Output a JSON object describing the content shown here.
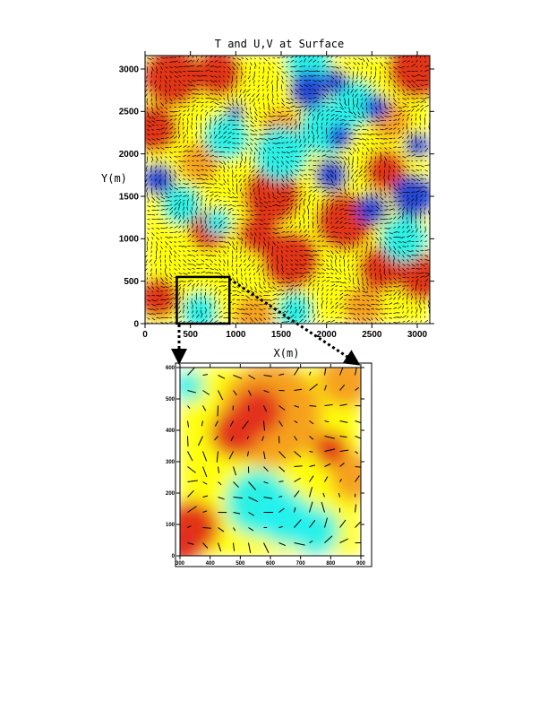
{
  "chart_data": [
    {
      "type": "heatmap",
      "title": "T and U,V at Surface",
      "xlabel": "X(m)",
      "ylabel": "Y(m)",
      "xlim": [
        0,
        3150
      ],
      "ylim": [
        0,
        3150
      ],
      "xticks": [
        0,
        500,
        1000,
        1500,
        2000,
        2500,
        3000
      ],
      "yticks": [
        0,
        500,
        1000,
        1500,
        2000,
        2500,
        3000
      ],
      "colormap": {
        "hot": "#e02a1a",
        "warm": "#f39020",
        "mid": "#ffff10",
        "cool": "#20f0f0",
        "cold": "#1a40e0"
      },
      "overlay": "wind vectors (U,V)",
      "zoom_box": {
        "x": [
          350,
          930
        ],
        "y": [
          0,
          550
        ]
      },
      "features": [
        {
          "x": 300,
          "y": 2900,
          "r": 320,
          "level": "hot"
        },
        {
          "x": 800,
          "y": 2950,
          "r": 260,
          "level": "hot"
        },
        {
          "x": 100,
          "y": 2300,
          "r": 260,
          "level": "hot"
        },
        {
          "x": 1400,
          "y": 1500,
          "r": 320,
          "level": "hot"
        },
        {
          "x": 1600,
          "y": 750,
          "r": 320,
          "level": "hot"
        },
        {
          "x": 1250,
          "y": 1050,
          "r": 220,
          "level": "hot"
        },
        {
          "x": 2200,
          "y": 1200,
          "r": 320,
          "level": "hot"
        },
        {
          "x": 2600,
          "y": 650,
          "r": 250,
          "level": "hot"
        },
        {
          "x": 3000,
          "y": 3000,
          "r": 320,
          "level": "hot"
        },
        {
          "x": 2700,
          "y": 2400,
          "r": 220,
          "level": "warm"
        },
        {
          "x": 2650,
          "y": 1800,
          "r": 230,
          "level": "hot"
        },
        {
          "x": 150,
          "y": 300,
          "r": 220,
          "level": "hot"
        },
        {
          "x": 1500,
          "y": 2300,
          "r": 220,
          "level": "warm"
        },
        {
          "x": 3050,
          "y": 550,
          "r": 260,
          "level": "hot"
        },
        {
          "x": 1200,
          "y": 100,
          "r": 220,
          "level": "warm"
        },
        {
          "x": 2400,
          "y": 200,
          "r": 220,
          "level": "warm"
        },
        {
          "x": 700,
          "y": 1100,
          "r": 220,
          "level": "hot"
        },
        {
          "x": 600,
          "y": 1900,
          "r": 220,
          "level": "warm"
        },
        {
          "x": 1500,
          "y": 2000,
          "r": 300,
          "level": "cool"
        },
        {
          "x": 400,
          "y": 1400,
          "r": 220,
          "level": "cool"
        },
        {
          "x": 2000,
          "y": 2300,
          "r": 300,
          "level": "cool"
        },
        {
          "x": 600,
          "y": 150,
          "r": 200,
          "level": "cool"
        },
        {
          "x": 1650,
          "y": 150,
          "r": 200,
          "level": "cool"
        },
        {
          "x": 2300,
          "y": 2600,
          "r": 260,
          "level": "cool"
        },
        {
          "x": 800,
          "y": 1200,
          "r": 150,
          "level": "cool"
        },
        {
          "x": 2850,
          "y": 1000,
          "r": 260,
          "level": "cool"
        },
        {
          "x": 900,
          "y": 2200,
          "r": 250,
          "level": "cool"
        },
        {
          "x": 1800,
          "y": 3050,
          "r": 250,
          "level": "cool"
        },
        {
          "x": 1800,
          "y": 2750,
          "r": 230,
          "level": "cold"
        },
        {
          "x": 2100,
          "y": 2850,
          "r": 150,
          "level": "cold"
        },
        {
          "x": 2550,
          "y": 2550,
          "r": 150,
          "level": "cold"
        },
        {
          "x": 150,
          "y": 1700,
          "r": 190,
          "level": "cold"
        },
        {
          "x": 1000,
          "y": 2500,
          "r": 100,
          "level": "cold"
        },
        {
          "x": 2950,
          "y": 1500,
          "r": 260,
          "level": "cold"
        },
        {
          "x": 2500,
          "y": 1350,
          "r": 190,
          "level": "cold"
        },
        {
          "x": 3000,
          "y": 2100,
          "r": 150,
          "level": "cold"
        },
        {
          "x": 2050,
          "y": 1750,
          "r": 200,
          "level": "cold"
        },
        {
          "x": 2150,
          "y": 2200,
          "r": 150,
          "level": "cold"
        }
      ]
    },
    {
      "type": "heatmap",
      "title": "",
      "xlim": [
        300,
        900
      ],
      "ylim": [
        0,
        600
      ],
      "xticks": [
        300,
        400,
        500,
        600,
        700,
        800,
        900
      ],
      "yticks": [
        0,
        100,
        200,
        300,
        400,
        500,
        600
      ],
      "overlay": "wind vectors (U,V)",
      "features": [
        {
          "x": 600,
          "y": 450,
          "r": 170,
          "level": "warm"
        },
        {
          "x": 480,
          "y": 390,
          "r": 80,
          "level": "hot"
        },
        {
          "x": 560,
          "y": 460,
          "r": 80,
          "level": "hot"
        },
        {
          "x": 800,
          "y": 340,
          "r": 60,
          "level": "hot"
        },
        {
          "x": 340,
          "y": 90,
          "r": 90,
          "level": "hot"
        },
        {
          "x": 310,
          "y": 30,
          "r": 60,
          "level": "hot"
        },
        {
          "x": 880,
          "y": 250,
          "r": 80,
          "level": "warm"
        },
        {
          "x": 850,
          "y": 560,
          "r": 90,
          "level": "warm"
        },
        {
          "x": 560,
          "y": 170,
          "r": 110,
          "level": "cool"
        },
        {
          "x": 750,
          "y": 80,
          "r": 80,
          "level": "cool"
        },
        {
          "x": 650,
          "y": 120,
          "r": 90,
          "level": "cool"
        },
        {
          "x": 330,
          "y": 540,
          "r": 50,
          "level": "cool"
        }
      ]
    }
  ]
}
